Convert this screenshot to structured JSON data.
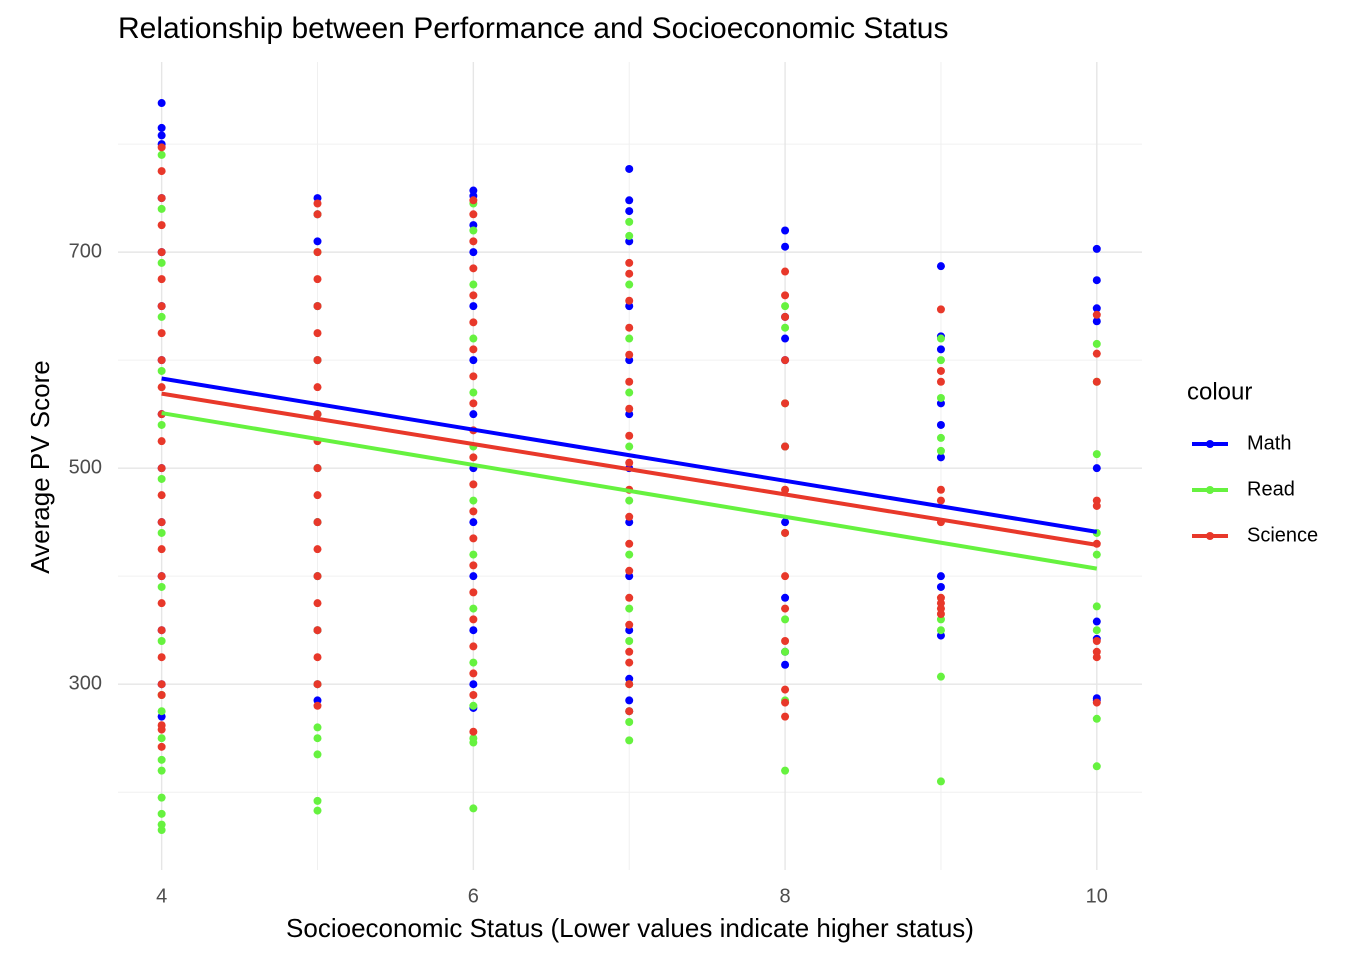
{
  "chart_data": {
    "type": "scatter",
    "title": "Relationship between Performance and Socioeconomic Status",
    "x_label": "Socioeconomic Status (Lower values indicate higher status)",
    "y_label": "Average PV Score",
    "legend_title": "colour",
    "legend_position": "right",
    "grid": true,
    "xlim": [
      3.72,
      10.29
    ],
    "ylim": [
      128,
      876
    ],
    "xticks": [
      4,
      6,
      8,
      10
    ],
    "yticks": [
      300,
      500,
      700
    ],
    "x_minor_grid": [
      5,
      7,
      9
    ],
    "y_minor_grid": [
      200,
      400,
      600,
      800
    ],
    "series": [
      {
        "name": "Math",
        "color": "#0000ff",
        "x": [
          4,
          4,
          4,
          4,
          4,
          4,
          4,
          4,
          4,
          4,
          4,
          4,
          4,
          4,
          4,
          5,
          5,
          5,
          5,
          5,
          5,
          5,
          5,
          5,
          5,
          5,
          5,
          6,
          6,
          6,
          6,
          6,
          6,
          6,
          6,
          6,
          6,
          6,
          6,
          6,
          7,
          7,
          7,
          7,
          7,
          7,
          7,
          7,
          7,
          7,
          7,
          7,
          7,
          7,
          8,
          8,
          8,
          8,
          8,
          8,
          8,
          8,
          8,
          8,
          9,
          9,
          9,
          9,
          9,
          9,
          9,
          9,
          9,
          10,
          10,
          10,
          10,
          10,
          10,
          10,
          10,
          10
        ],
        "values": [
          838,
          815,
          808,
          800,
          750,
          700,
          650,
          600,
          550,
          500,
          450,
          400,
          350,
          300,
          270,
          750,
          735,
          710,
          650,
          600,
          550,
          500,
          450,
          400,
          350,
          300,
          285,
          757,
          752,
          725,
          700,
          650,
          600,
          550,
          500,
          450,
          400,
          350,
          300,
          278,
          777,
          748,
          738,
          710,
          650,
          600,
          550,
          500,
          450,
          400,
          350,
          305,
          285,
          275,
          720,
          705,
          640,
          620,
          600,
          520,
          450,
          380,
          330,
          318,
          687,
          622,
          610,
          560,
          540,
          510,
          400,
          390,
          345,
          703,
          674,
          648,
          636,
          500,
          358,
          342,
          287,
          285
        ],
        "fit": {
          "x": [
            4,
            10
          ],
          "values": [
            583,
            441
          ]
        }
      },
      {
        "name": "Read",
        "color": "#66f23f",
        "x": [
          4,
          4,
          4,
          4,
          4,
          4,
          4,
          4,
          4,
          4,
          4,
          4,
          4,
          4,
          4,
          4,
          4,
          4,
          4,
          5,
          5,
          5,
          5,
          5,
          5,
          5,
          5,
          5,
          5,
          5,
          5,
          5,
          5,
          5,
          6,
          6,
          6,
          6,
          6,
          6,
          6,
          6,
          6,
          6,
          6,
          6,
          6,
          6,
          7,
          7,
          7,
          7,
          7,
          7,
          7,
          7,
          7,
          7,
          7,
          7,
          7,
          7,
          8,
          8,
          8,
          8,
          8,
          8,
          8,
          8,
          8,
          9,
          9,
          9,
          9,
          9,
          9,
          9,
          9,
          9,
          10,
          10,
          10,
          10,
          10,
          10,
          10,
          10,
          10
        ],
        "values": [
          790,
          740,
          690,
          640,
          590,
          540,
          490,
          440,
          390,
          340,
          290,
          275,
          250,
          230,
          220,
          195,
          180,
          170,
          165,
          735,
          700,
          650,
          600,
          550,
          500,
          450,
          400,
          350,
          300,
          260,
          250,
          235,
          192,
          183,
          745,
          720,
          670,
          620,
          570,
          520,
          470,
          420,
          370,
          320,
          280,
          250,
          246,
          185,
          728,
          715,
          670,
          620,
          570,
          520,
          470,
          420,
          370,
          340,
          300,
          275,
          265,
          248,
          650,
          630,
          560,
          520,
          440,
          360,
          330,
          285,
          220,
          620,
          600,
          565,
          528,
          516,
          360,
          350,
          307,
          210,
          615,
          580,
          513,
          440,
          420,
          372,
          350,
          268,
          224
        ],
        "fit": {
          "x": [
            4,
            10
          ],
          "values": [
            551,
            407
          ]
        }
      },
      {
        "name": "Science",
        "color": "#e8382a",
        "x": [
          4,
          4,
          4,
          4,
          4,
          4,
          4,
          4,
          4,
          4,
          4,
          4,
          4,
          4,
          4,
          4,
          4,
          4,
          4,
          4,
          4,
          4,
          4,
          4,
          4,
          5,
          5,
          5,
          5,
          5,
          5,
          5,
          5,
          5,
          5,
          5,
          5,
          5,
          5,
          5,
          5,
          5,
          5,
          5,
          5,
          6,
          6,
          6,
          6,
          6,
          6,
          6,
          6,
          6,
          6,
          6,
          6,
          6,
          6,
          6,
          6,
          6,
          6,
          6,
          6,
          6,
          7,
          7,
          7,
          7,
          7,
          7,
          7,
          7,
          7,
          7,
          7,
          7,
          7,
          7,
          7,
          7,
          7,
          7,
          7,
          8,
          8,
          8,
          8,
          8,
          8,
          8,
          8,
          8,
          8,
          8,
          8,
          8,
          8,
          9,
          9,
          9,
          9,
          9,
          9,
          9,
          9,
          9,
          9,
          10,
          10,
          10,
          10,
          10,
          10,
          10,
          10,
          10,
          10
        ],
        "values": [
          797,
          775,
          750,
          725,
          700,
          675,
          650,
          625,
          600,
          575,
          550,
          525,
          500,
          475,
          450,
          425,
          400,
          375,
          350,
          325,
          300,
          290,
          262,
          258,
          242,
          745,
          735,
          700,
          675,
          650,
          625,
          600,
          575,
          550,
          525,
          500,
          475,
          450,
          425,
          400,
          375,
          350,
          325,
          300,
          280,
          748,
          735,
          710,
          685,
          660,
          635,
          610,
          585,
          560,
          535,
          510,
          485,
          460,
          435,
          410,
          385,
          360,
          335,
          310,
          290,
          256,
          690,
          680,
          655,
          630,
          605,
          580,
          555,
          530,
          505,
          480,
          455,
          430,
          405,
          380,
          355,
          330,
          320,
          300,
          275,
          682,
          660,
          640,
          600,
          560,
          520,
          480,
          440,
          400,
          370,
          340,
          295,
          283,
          270,
          647,
          590,
          580,
          480,
          470,
          450,
          380,
          375,
          370,
          365,
          642,
          606,
          580,
          470,
          465,
          430,
          340,
          330,
          325,
          283
        ],
        "fit": {
          "x": [
            4,
            10
          ],
          "values": [
            569,
            429
          ]
        }
      }
    ]
  }
}
